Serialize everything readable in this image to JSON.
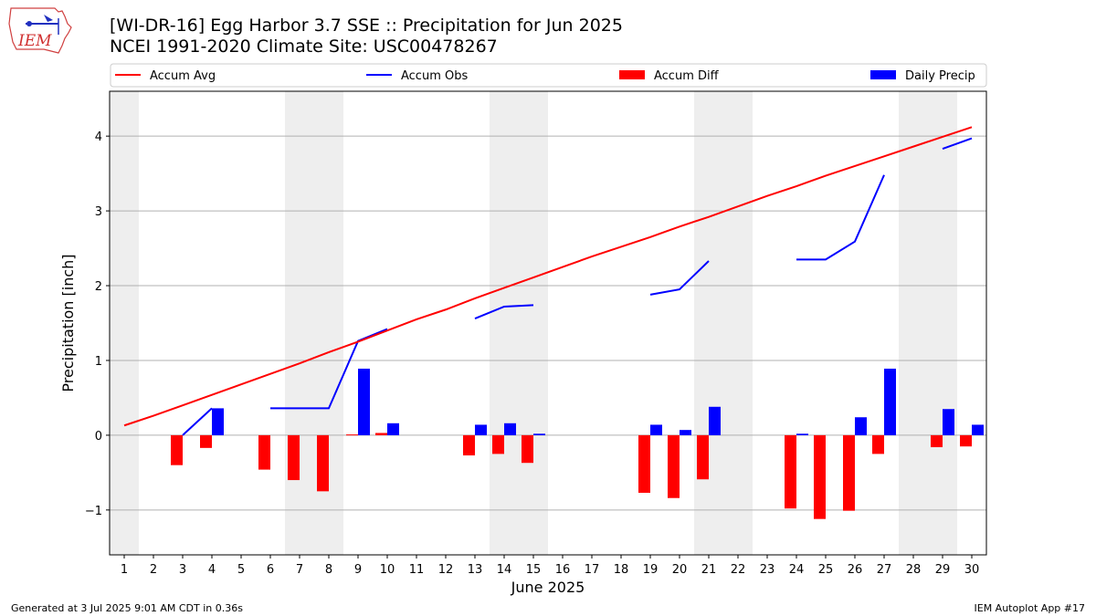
{
  "logo_text": "IEM",
  "title_line1": "[WI-DR-16] Egg Harbor 3.7 SSE :: Precipitation for Jun 2025",
  "title_line2": "NCEI 1991-2020 Climate Site: USC00478267",
  "footer_left": "Generated at 3 Jul 2025 9:01 AM CDT in 0.36s",
  "footer_right": "IEM Autoplot App #17",
  "colors": {
    "avg": "#ff0000",
    "obs": "#0000ff",
    "diff": "#ff0000",
    "daily": "#0000ff",
    "shade": "#eeeeee",
    "grid": "#b0b0b0"
  },
  "chart_data": {
    "type": "bar",
    "xlabel": "June 2025",
    "ylabel": "Precipitation [inch]",
    "ylim": [
      -1.6,
      4.6
    ],
    "yticks": [
      -1,
      0,
      1,
      2,
      3,
      4
    ],
    "ytick_labels": [
      "−1",
      "0",
      "1",
      "2",
      "3",
      "4"
    ],
    "grid": "horizontal",
    "legend_position": "top",
    "days": [
      1,
      2,
      3,
      4,
      5,
      6,
      7,
      8,
      9,
      10,
      11,
      12,
      13,
      14,
      15,
      16,
      17,
      18,
      19,
      20,
      21,
      22,
      23,
      24,
      25,
      26,
      27,
      28,
      29,
      30
    ],
    "weekend_days": [
      [
        1,
        1
      ],
      [
        7,
        8
      ],
      [
        14,
        15
      ],
      [
        21,
        22
      ],
      [
        28,
        29
      ]
    ],
    "series": [
      {
        "name": "Accum Avg",
        "kind": "line",
        "values": [
          0.13,
          0.26,
          0.4,
          0.54,
          0.68,
          0.82,
          0.96,
          1.11,
          1.25,
          1.4,
          1.55,
          1.68,
          1.83,
          1.97,
          2.11,
          2.25,
          2.39,
          2.52,
          2.65,
          2.79,
          2.92,
          3.06,
          3.2,
          3.33,
          3.47,
          3.6,
          3.73,
          3.86,
          3.99,
          4.12
        ]
      },
      {
        "name": "Accum Obs",
        "kind": "line",
        "values": [
          null,
          null,
          0.0,
          0.36,
          null,
          0.36,
          0.36,
          0.36,
          1.26,
          1.42,
          null,
          null,
          1.56,
          1.72,
          1.74,
          null,
          null,
          null,
          1.88,
          1.95,
          2.33,
          null,
          null,
          2.35,
          2.35,
          2.59,
          3.48,
          null,
          3.83,
          3.97
        ]
      },
      {
        "name": "Accum Diff",
        "kind": "bar",
        "values": [
          null,
          null,
          -0.4,
          -0.17,
          null,
          -0.46,
          -0.6,
          -0.75,
          0.01,
          0.03,
          null,
          null,
          -0.27,
          -0.25,
          -0.37,
          null,
          null,
          null,
          -0.77,
          -0.84,
          -0.59,
          null,
          null,
          -0.98,
          -1.12,
          -1.01,
          -0.25,
          null,
          -0.16,
          -0.15
        ]
      },
      {
        "name": "Daily Precip",
        "kind": "bar",
        "values": [
          null,
          null,
          null,
          0.36,
          null,
          null,
          null,
          null,
          0.89,
          0.16,
          null,
          null,
          0.14,
          0.16,
          0.02,
          null,
          null,
          null,
          0.14,
          0.07,
          0.38,
          null,
          null,
          0.02,
          null,
          0.24,
          0.89,
          null,
          0.35,
          0.14
        ]
      }
    ]
  }
}
